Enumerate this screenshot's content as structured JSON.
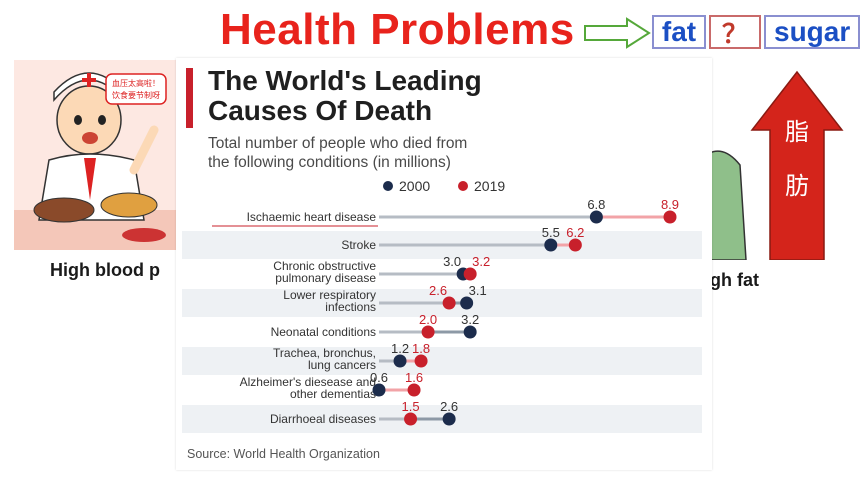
{
  "slide": {
    "title": "Health Problems",
    "tags": {
      "fat": "fat",
      "question": "？",
      "sugar": "sugar"
    },
    "speech_bubble": [
      "血压太高啦！",
      "饮食要节制呀"
    ],
    "arrow_text": [
      "脂",
      "肪"
    ],
    "caption_left": "High blood p",
    "caption_right": "gh fat"
  },
  "chart_data": {
    "type": "dot",
    "title": "The World's Leading Causes Of Death",
    "title_lines": [
      "The World's Leading",
      "Causes Of Death"
    ],
    "subtitle": "Total number of people who died from the following conditions (in millions)",
    "subtitle_lines": [
      "Total number of people who died from",
      "the following conditions (in millions)"
    ],
    "categories": [
      [
        "Ischaemic heart disease"
      ],
      [
        "Stroke"
      ],
      [
        "Chronic obstructive",
        "pulmonary disease"
      ],
      [
        "Lower respiratory",
        "infections"
      ],
      [
        "Neonatal conditions"
      ],
      [
        "Trachea, bronchus,",
        "lung cancers"
      ],
      [
        "Alzheimer's diesease and",
        "other dementias"
      ],
      [
        "Diarrhoeal diseases"
      ]
    ],
    "series": [
      {
        "name": "2000",
        "color": "#1c2c4c",
        "values": [
          6.8,
          5.5,
          3.0,
          3.1,
          3.2,
          1.2,
          0.6,
          2.6
        ]
      },
      {
        "name": "2019",
        "color": "#c8202b",
        "values": [
          8.9,
          6.2,
          3.2,
          2.6,
          2.0,
          1.8,
          1.6,
          1.5
        ]
      }
    ],
    "value_labels_2000": [
      "6.8",
      "5.5",
      "3.0",
      "3.1",
      "3.2",
      "1.2",
      "0.6",
      "2.6"
    ],
    "value_labels_2019": [
      "8.9",
      "6.2",
      "3.2",
      "2.6",
      "2.0",
      "1.8",
      "1.6",
      "1.5"
    ],
    "legend_position": "top",
    "source": "Source: World Health Organization"
  }
}
